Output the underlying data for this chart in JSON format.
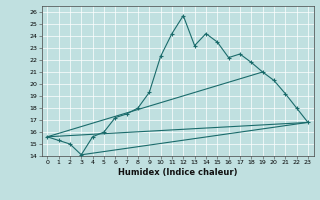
{
  "xlabel": "Humidex (Indice chaleur)",
  "background_color": "#c0e0e0",
  "line_color": "#1a6b6b",
  "xlim": [
    -0.5,
    23.5
  ],
  "ylim": [
    14,
    26.5
  ],
  "yticks": [
    14,
    15,
    16,
    17,
    18,
    19,
    20,
    21,
    22,
    23,
    24,
    25,
    26
  ],
  "xticks": [
    0,
    1,
    2,
    3,
    4,
    5,
    6,
    7,
    8,
    9,
    10,
    11,
    12,
    13,
    14,
    15,
    16,
    17,
    18,
    19,
    20,
    21,
    22,
    23
  ],
  "series1_x": [
    0,
    1,
    2,
    3,
    4,
    5,
    6,
    7,
    8,
    9,
    10,
    11,
    12,
    13,
    14,
    15,
    16,
    17,
    18,
    19,
    20,
    21,
    22,
    23
  ],
  "series1_y": [
    15.6,
    15.3,
    15.0,
    14.1,
    15.6,
    16.0,
    17.2,
    17.5,
    18.0,
    19.3,
    22.3,
    24.2,
    25.7,
    23.2,
    24.2,
    23.5,
    22.2,
    22.5,
    21.8,
    21.0,
    20.3,
    19.2,
    18.0,
    16.8
  ],
  "series2_x": [
    0,
    19
  ],
  "series2_y": [
    15.6,
    21.0
  ],
  "series3_x": [
    0,
    23
  ],
  "series3_y": [
    15.6,
    16.8
  ],
  "series4_x": [
    3,
    23
  ],
  "series4_y": [
    14.1,
    16.8
  ]
}
